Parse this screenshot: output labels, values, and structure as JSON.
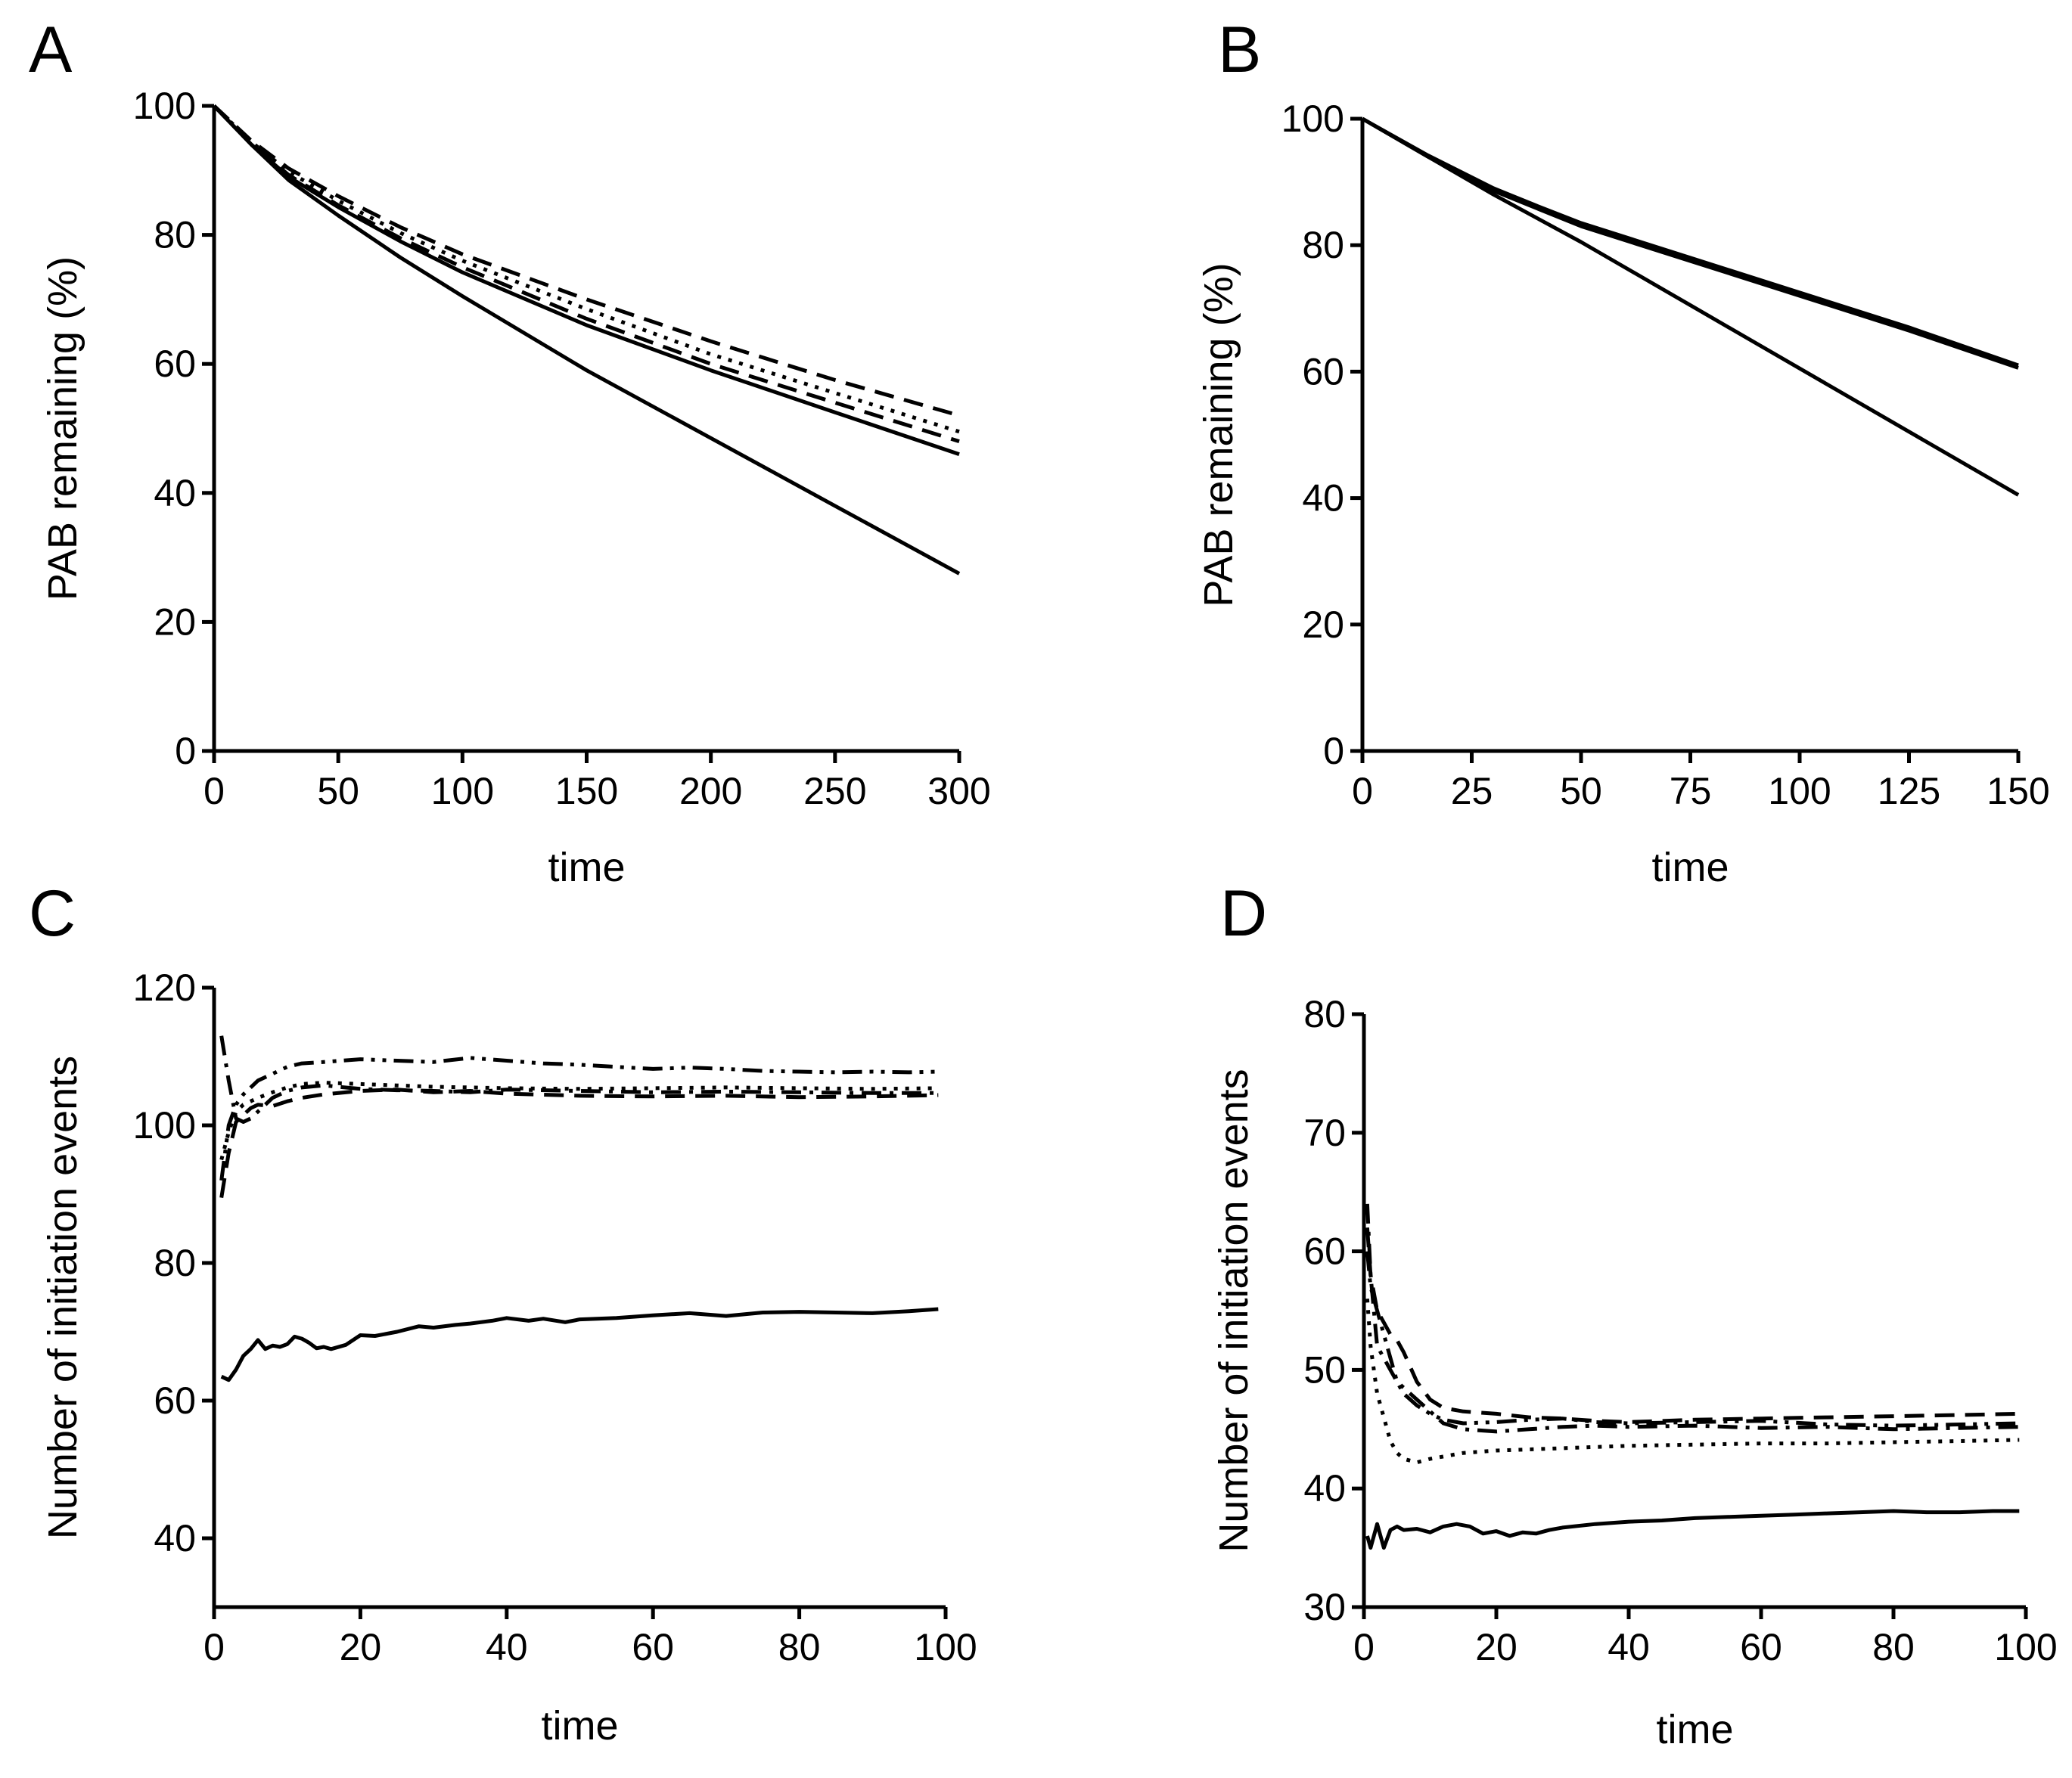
{
  "chart_data": [
    {
      "panel": "A",
      "type": "line",
      "title": "",
      "xlabel": "time",
      "ylabel": "PAB remaining (%)",
      "xlim": [
        0,
        300
      ],
      "ylim": [
        0,
        100
      ],
      "xticks": [
        0,
        50,
        100,
        150,
        200,
        250,
        300
      ],
      "yticks": [
        0,
        20,
        40,
        60,
        80,
        100
      ],
      "grid": false,
      "series": [
        {
          "style": "solid",
          "x": [
            0,
            15,
            30,
            50,
            75,
            100,
            150,
            200,
            250,
            300
          ],
          "y": [
            100,
            94,
            88.5,
            83,
            76.5,
            70.5,
            59,
            48.5,
            38,
            27.5
          ]
        },
        {
          "style": "solid",
          "x": [
            0,
            15,
            30,
            50,
            75,
            100,
            150,
            200,
            250,
            300
          ],
          "y": [
            100,
            94,
            89,
            84.3,
            79,
            74.2,
            66,
            59,
            52.5,
            46
          ]
        },
        {
          "style": "dash",
          "x": [
            0,
            15,
            30,
            50,
            75,
            100,
            150,
            200,
            250,
            300
          ],
          "y": [
            100,
            94.2,
            89.3,
            84.6,
            79.5,
            75,
            67,
            60,
            54,
            48
          ]
        },
        {
          "style": "dot",
          "x": [
            0,
            15,
            30,
            50,
            75,
            100,
            150,
            200,
            250,
            300
          ],
          "y": [
            100,
            94.4,
            89.8,
            85.3,
            80.3,
            76,
            68.5,
            61.5,
            55.5,
            49.5
          ]
        },
        {
          "style": "dash",
          "x": [
            0,
            15,
            30,
            50,
            75,
            100,
            150,
            200,
            250,
            300
          ],
          "y": [
            100,
            94.6,
            90.3,
            86,
            81.2,
            77,
            70,
            63.5,
            57.5,
            52
          ]
        }
      ]
    },
    {
      "panel": "B",
      "type": "line",
      "title": "",
      "xlabel": "time",
      "ylabel": "PAB remaining (%)",
      "xlim": [
        0,
        150
      ],
      "ylim": [
        0,
        100
      ],
      "xticks": [
        0,
        25,
        50,
        75,
        100,
        125,
        150
      ],
      "yticks": [
        0,
        20,
        40,
        60,
        80,
        100
      ],
      "grid": false,
      "series": [
        {
          "style": "solid",
          "x": [
            0,
            15,
            30,
            50,
            75,
            100,
            125,
            150
          ],
          "y": [
            100,
            94,
            88,
            80.5,
            70.5,
            60.5,
            50.5,
            40.5
          ]
        },
        {
          "style": "solid",
          "x": [
            0,
            15,
            30,
            40,
            50,
            75,
            100,
            125,
            150
          ],
          "y": [
            100,
            94.2,
            89,
            86.2,
            83.5,
            78,
            72.5,
            67,
            61
          ]
        },
        {
          "style": "solid",
          "x": [
            0,
            15,
            30,
            40,
            50,
            75,
            100,
            125,
            150
          ],
          "y": [
            100,
            94,
            88.6,
            85.8,
            83,
            77.5,
            72,
            66.5,
            60.6
          ]
        }
      ]
    },
    {
      "panel": "C",
      "type": "line",
      "title": "",
      "xlabel": "time",
      "ylabel": "Number of initiation events",
      "xlim": [
        0,
        100
      ],
      "ylim": [
        30,
        120
      ],
      "xticks": [
        0,
        20,
        40,
        60,
        80,
        100
      ],
      "yticks": [
        40,
        60,
        80,
        100,
        120
      ],
      "grid": false,
      "series": [
        {
          "style": "solid",
          "x": [
            1,
            2,
            3,
            4,
            5,
            6,
            7,
            8,
            9,
            10,
            11,
            12,
            13,
            14,
            15,
            16,
            18,
            20,
            22,
            25,
            28,
            30,
            33,
            35,
            38,
            40,
            43,
            45,
            48,
            50,
            55,
            60,
            65,
            70,
            75,
            80,
            85,
            90,
            95,
            99
          ],
          "y": [
            63.5,
            63,
            64.5,
            66.5,
            67.5,
            68.8,
            67.5,
            68,
            67.8,
            68.2,
            69.3,
            69,
            68.4,
            67.6,
            67.8,
            67.5,
            68.1,
            69.5,
            69.4,
            70,
            70.8,
            70.6,
            71,
            71.2,
            71.6,
            72,
            71.6,
            71.9,
            71.4,
            71.8,
            72,
            72.4,
            72.7,
            72.3,
            72.8,
            72.9,
            72.8,
            72.7,
            73,
            73.3
          ]
        },
        {
          "style": "dash",
          "x": [
            1,
            2,
            3,
            4,
            5,
            6,
            8,
            10,
            12,
            15,
            20,
            25,
            30,
            35,
            40,
            50,
            60,
            70,
            80,
            90,
            99
          ],
          "y": [
            89.5,
            96,
            100.5,
            101.5,
            102.5,
            103,
            102.8,
            103.5,
            104,
            104.5,
            105,
            105.2,
            104.8,
            105,
            104.6,
            104.3,
            104.2,
            104.3,
            104.1,
            104.2,
            104.4
          ]
        },
        {
          "style": "dashdot",
          "x": [
            1,
            2,
            3,
            4,
            5,
            6,
            8,
            10,
            12,
            15,
            20,
            25,
            30,
            35,
            40,
            50,
            60,
            70,
            80,
            90,
            99
          ],
          "y": [
            113,
            106.5,
            101,
            100.5,
            101,
            102,
            104,
            105,
            105.5,
            105.8,
            105.3,
            105.1,
            105,
            104.8,
            105.2,
            105,
            104.8,
            104.9,
            104.8,
            104.7,
            104.7
          ]
        },
        {
          "style": "dot",
          "x": [
            1,
            2,
            3,
            4,
            5,
            6,
            8,
            10,
            12,
            15,
            20,
            25,
            30,
            35,
            40,
            50,
            60,
            70,
            80,
            90,
            99
          ],
          "y": [
            95,
            99,
            102,
            103,
            103.5,
            104,
            104.8,
            105.5,
            106,
            106.2,
            106,
            105.8,
            105.6,
            105.5,
            105.4,
            105.3,
            105.4,
            105.5,
            105.4,
            105.3,
            105.4
          ]
        },
        {
          "style": "dashdotdot",
          "x": [
            1,
            2,
            3,
            4,
            5,
            6,
            8,
            10,
            12,
            15,
            20,
            25,
            30,
            35,
            40,
            45,
            50,
            55,
            60,
            65,
            70,
            75,
            80,
            85,
            90,
            95,
            99
          ],
          "y": [
            92,
            100,
            103,
            104.5,
            105.5,
            106.5,
            107.5,
            108.5,
            109,
            109.2,
            109.6,
            109.4,
            109.2,
            109.8,
            109.4,
            109,
            108.8,
            108.5,
            108.2,
            108.4,
            108.2,
            107.9,
            107.8,
            107.7,
            107.8,
            107.7,
            107.8
          ]
        }
      ]
    },
    {
      "panel": "D",
      "type": "line",
      "title": "",
      "xlabel": "time",
      "ylabel": "Number of initiation events",
      "xlim": [
        0,
        100
      ],
      "ylim": [
        30,
        80
      ],
      "xticks": [
        0,
        20,
        40,
        60,
        80,
        100
      ],
      "yticks": [
        30,
        40,
        50,
        60,
        70,
        80
      ],
      "grid": false,
      "series": [
        {
          "style": "solid",
          "x": [
            0.5,
            1,
            2,
            3,
            4,
            5,
            6,
            8,
            10,
            12,
            14,
            16,
            18,
            20,
            22,
            24,
            26,
            28,
            30,
            35,
            40,
            45,
            50,
            55,
            60,
            65,
            70,
            75,
            80,
            85,
            90,
            95,
            99
          ],
          "y": [
            36,
            35,
            37,
            35,
            36.5,
            36.8,
            36.5,
            36.6,
            36.3,
            36.8,
            37,
            36.8,
            36.2,
            36.4,
            36,
            36.3,
            36.2,
            36.5,
            36.7,
            37,
            37.2,
            37.3,
            37.5,
            37.6,
            37.7,
            37.8,
            37.9,
            38,
            38.1,
            38,
            38,
            38.1,
            38.1
          ]
        },
        {
          "style": "dot",
          "x": [
            0.5,
            1,
            2,
            3,
            4,
            5,
            6,
            8,
            10,
            12,
            15,
            20,
            25,
            30,
            35,
            40,
            50,
            60,
            70,
            80,
            90,
            99
          ],
          "y": [
            56,
            52,
            48,
            46,
            44,
            43,
            42.5,
            42.2,
            42.5,
            42.7,
            43,
            43.2,
            43.3,
            43.4,
            43.5,
            43.6,
            43.7,
            43.8,
            43.8,
            43.9,
            44,
            44.1
          ]
        },
        {
          "style": "dashdot",
          "x": [
            0.5,
            1,
            2,
            3,
            4,
            5,
            6,
            8,
            10,
            12,
            15,
            20,
            25,
            30,
            35,
            40,
            50,
            60,
            70,
            80,
            90,
            99
          ],
          "y": [
            64,
            58,
            52,
            51,
            50,
            49,
            48.5,
            47.5,
            46.5,
            45.5,
            45,
            44.8,
            45,
            45.2,
            45.3,
            45.2,
            45.3,
            45.1,
            45.2,
            45,
            45.1,
            45.2
          ]
        },
        {
          "style": "dash",
          "x": [
            0.5,
            1,
            2,
            3,
            4,
            5,
            6,
            8,
            10,
            12,
            15,
            20,
            25,
            30,
            35,
            40,
            50,
            60,
            70,
            80,
            90,
            99
          ],
          "y": [
            62,
            58,
            55,
            54,
            53,
            52.5,
            51.5,
            49,
            47.5,
            46.8,
            46.5,
            46.3,
            46,
            45.9,
            45.7,
            45.6,
            45.8,
            45.9,
            46,
            46.1,
            46.2,
            46.3
          ]
        },
        {
          "style": "dashdotdot",
          "x": [
            0.5,
            1,
            2,
            3,
            4,
            5,
            6,
            8,
            10,
            12,
            15,
            20,
            25,
            30,
            35,
            40,
            50,
            60,
            70,
            80,
            90,
            99
          ],
          "y": [
            60,
            57,
            55,
            53,
            51,
            49,
            48,
            47,
            46.3,
            45.8,
            45.5,
            45.6,
            45.8,
            45.9,
            45.6,
            45.5,
            45.6,
            45.7,
            45.4,
            45.3,
            45.4,
            45.5
          ]
        }
      ]
    }
  ]
}
